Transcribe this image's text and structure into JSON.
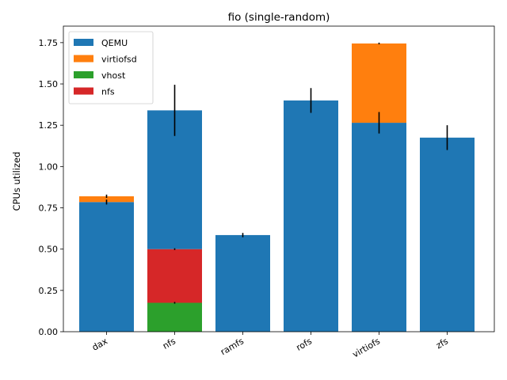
{
  "chart_data": {
    "type": "bar",
    "stacked": true,
    "title": "fio (single-random)",
    "xlabel": "",
    "ylabel": "CPUs utilized",
    "categories": [
      "dax",
      "nfs",
      "ramfs",
      "rofs",
      "virtiofs",
      "zfs"
    ],
    "ylim": [
      0,
      1.85
    ],
    "yticks": [
      "0.00",
      "0.25",
      "0.50",
      "0.75",
      "1.00",
      "1.25",
      "1.50",
      "1.75"
    ],
    "series": [
      {
        "name": "QEMU",
        "color": "#1f77b4",
        "values": [
          0.785,
          0.84,
          0.585,
          1.4,
          1.265,
          1.175
        ],
        "errors": [
          0.015,
          0.155,
          0.013,
          0.075,
          0.065,
          0.075
        ]
      },
      {
        "name": "virtiofsd",
        "color": "#ff7f0e",
        "values": [
          0.035,
          0,
          0,
          0,
          0.48,
          0
        ],
        "errors": [
          0.01,
          0,
          0,
          0,
          0.005,
          0
        ]
      },
      {
        "name": "vhost",
        "color": "#2ca02c",
        "values": [
          0,
          0.175,
          0,
          0,
          0,
          0
        ],
        "errors": [
          0,
          0.005,
          0,
          0,
          0,
          0
        ]
      },
      {
        "name": "nfs",
        "color": "#d62728",
        "values": [
          0,
          0.325,
          0,
          0,
          0,
          0
        ],
        "errors": [
          0,
          0.005,
          0,
          0,
          0,
          0
        ]
      }
    ],
    "stack_order": [
      "vhost",
      "nfs",
      "QEMU",
      "virtiofsd"
    ],
    "legend_position": "upper-left",
    "grid": false
  }
}
